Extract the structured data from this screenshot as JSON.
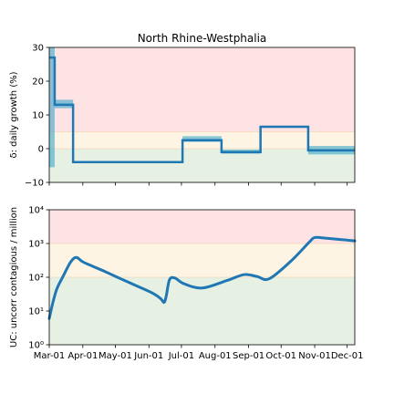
{
  "chart_data": [
    {
      "type": "line",
      "title": "North Rhine-Westphalia",
      "ylabel": "δ: daily growth (%)",
      "ylim": [
        -10,
        30
      ],
      "yticks": [
        "30",
        "20",
        "10",
        "0",
        "−10"
      ],
      "ytick_values": [
        30,
        20,
        10,
        0,
        -10
      ],
      "xlim": [
        "2020-03-01",
        "2020-12-08"
      ],
      "background_bands": [
        {
          "from": -10,
          "to": 0,
          "color": "#e6f1e3"
        },
        {
          "from": 0,
          "to": 5,
          "color": "#fdf4e3"
        },
        {
          "from": 5,
          "to": 30,
          "color": "#fde3e3"
        }
      ],
      "band_lines": [
        0,
        5
      ],
      "series": [
        {
          "color": "#1f77b4",
          "steps": [
            {
              "start": "2020-03-01",
              "end": "2020-03-06",
              "value": 27,
              "lo": -5.5,
              "hi": 30
            },
            {
              "start": "2020-03-06",
              "end": "2020-03-23",
              "value": 13,
              "lo": 12,
              "hi": 14.5
            },
            {
              "start": "2020-03-23",
              "end": "2020-07-02",
              "value": -4,
              "lo": -4,
              "hi": -4
            },
            {
              "start": "2020-07-02",
              "end": "2020-08-07",
              "value": 2.5,
              "lo": 2,
              "hi": 3.7
            },
            {
              "start": "2020-08-07",
              "end": "2020-09-12",
              "value": -1,
              "lo": -1.5,
              "hi": -0.3
            },
            {
              "start": "2020-09-12",
              "end": "2020-10-26",
              "value": 6.5,
              "lo": 6.5,
              "hi": 6.8
            },
            {
              "start": "2020-10-26",
              "end": "2020-12-08",
              "value": -0.5,
              "lo": -1.7,
              "hi": 0.8
            }
          ]
        }
      ]
    },
    {
      "type": "line",
      "ylabel": "UC: uncorr contagious / million",
      "yscale": "log",
      "ylim": [
        1,
        10000
      ],
      "yticks": [
        "10⁴",
        "10³",
        "10²",
        "10¹",
        "10⁰"
      ],
      "ytick_values": [
        10000,
        1000,
        100,
        10,
        1
      ],
      "xlim": [
        "2020-03-01",
        "2020-12-08"
      ],
      "xticks": [
        "Mar-01",
        "Apr-01",
        "May-01",
        "Jun-01",
        "Jul-01",
        "Aug-01",
        "Sep-01",
        "Oct-01",
        "Nov-01",
        "Dec-01"
      ],
      "xtick_dates": [
        "2020-03-01",
        "2020-04-01",
        "2020-05-01",
        "2020-06-01",
        "2020-07-01",
        "2020-08-01",
        "2020-09-01",
        "2020-10-01",
        "2020-11-01",
        "2020-12-01"
      ],
      "background_bands": [
        {
          "from": 1,
          "to": 100,
          "color": "#e6f1e3"
        },
        {
          "from": 100,
          "to": 1000,
          "color": "#fdf4e3"
        },
        {
          "from": 1000,
          "to": 10000,
          "color": "#fde3e3"
        }
      ],
      "band_lines": [
        100,
        1000
      ],
      "series": [
        {
          "color": "#1f77b4",
          "x": [
            "2020-03-01",
            "2020-03-04",
            "2020-03-08",
            "2020-03-14",
            "2020-03-20",
            "2020-03-24",
            "2020-03-27",
            "2020-03-31",
            "2020-04-06",
            "2020-04-21",
            "2020-05-06",
            "2020-05-21",
            "2020-06-05",
            "2020-06-12",
            "2020-06-15",
            "2020-06-17",
            "2020-06-20",
            "2020-06-25",
            "2020-07-03",
            "2020-07-20",
            "2020-08-12",
            "2020-08-28",
            "2020-09-09",
            "2020-09-20",
            "2020-10-10",
            "2020-10-27",
            "2020-11-01",
            "2020-11-10",
            "2020-12-08"
          ],
          "y": [
            6,
            16,
            45,
            110,
            260,
            370,
            380,
            300,
            240,
            150,
            90,
            55,
            33,
            23,
            18,
            28,
            85,
            95,
            65,
            48,
            80,
            120,
            105,
            90,
            300,
            1100,
            1500,
            1450,
            1200
          ]
        }
      ]
    }
  ]
}
